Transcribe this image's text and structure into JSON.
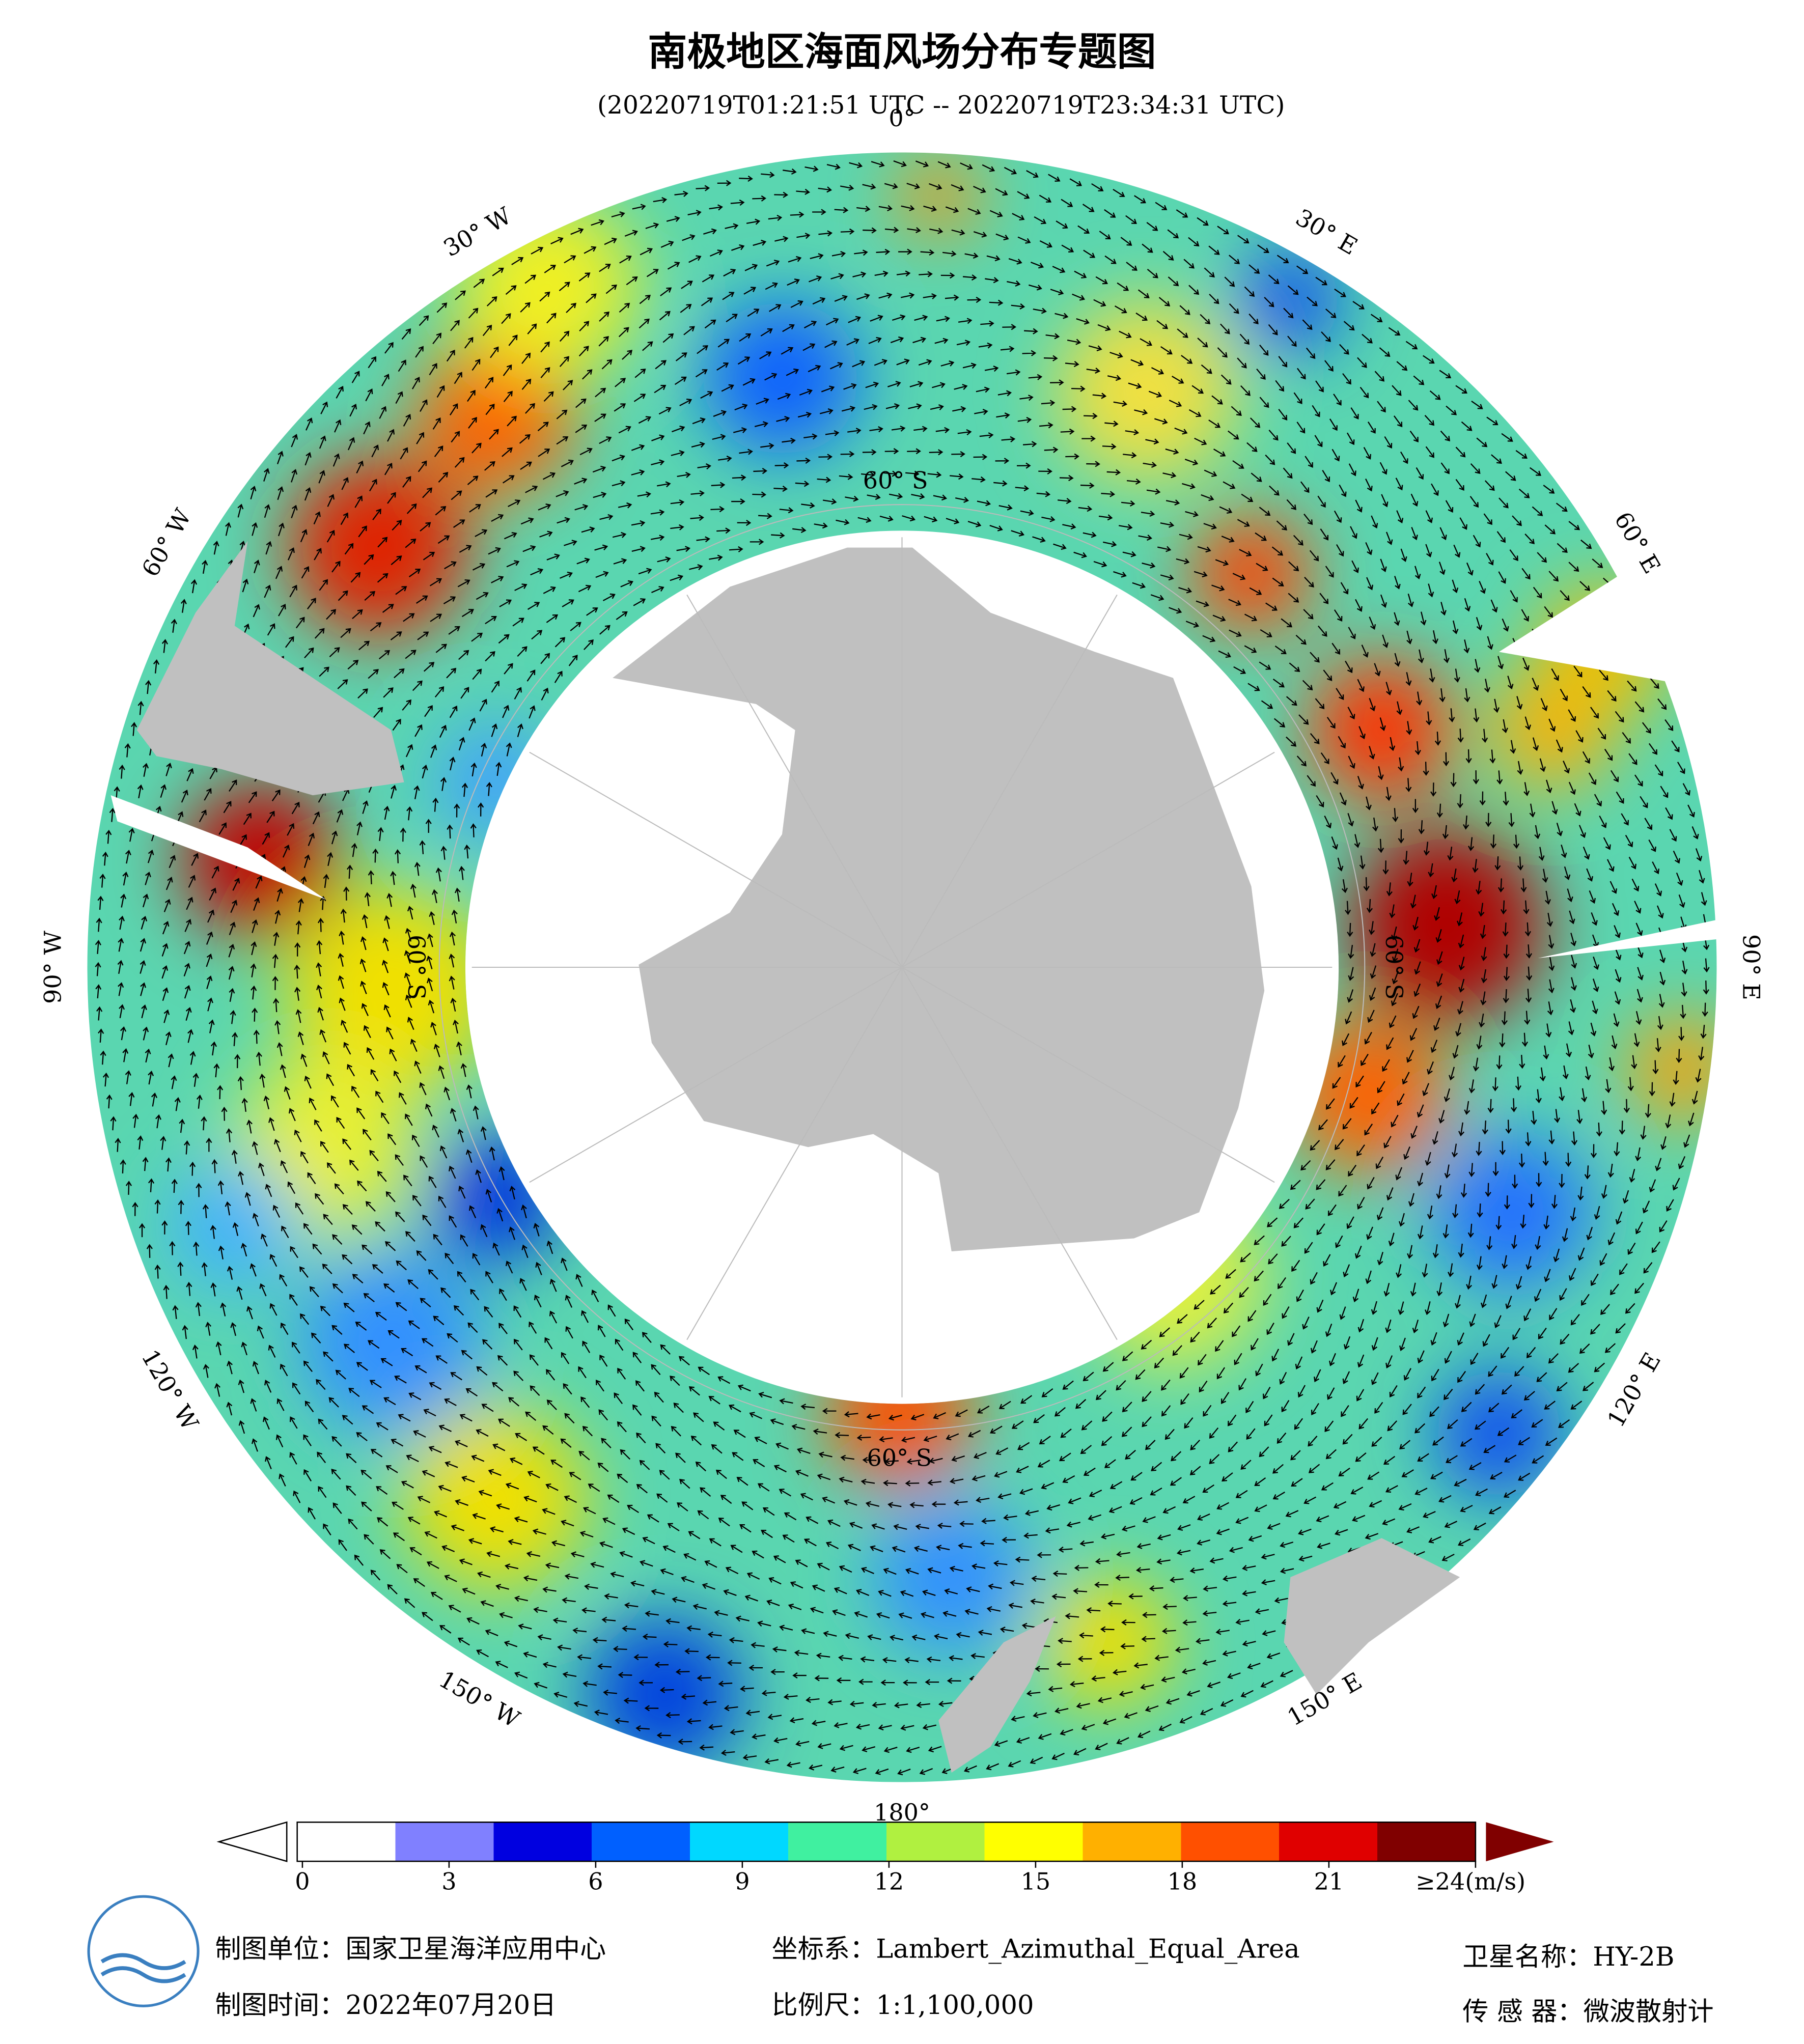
{
  "title": "南极地区海面风场分布专题图",
  "subtitle": "(20220719T01:21:51 UTC -- 20220719T23:34:31 UTC)",
  "map": {
    "graticule_labels": [
      "0°",
      "30° E",
      "60° E",
      "90° E",
      "120° E",
      "150° E",
      "180°",
      "150° W",
      "120° W",
      "90° W",
      "60° W",
      "30° W"
    ],
    "latitude_labels": [
      "60° S",
      "60° S",
      "60° S",
      "60° S"
    ]
  },
  "colorbar": {
    "range": [
      0,
      24
    ],
    "ticks": [
      0,
      3,
      6,
      9,
      12,
      15,
      18,
      21,
      {
        "value": 24,
        "label": "≥24(m/s)"
      }
    ],
    "colors": [
      "#ffffff",
      "#8080ff",
      "#0000e0",
      "#0060ff",
      "#00d8ff",
      "#40f0a0",
      "#b0f040",
      "#ffff00",
      "#ffb000",
      "#ff5000",
      "#e00000",
      "#800000"
    ]
  },
  "footer": {
    "unit": "制图单位：国家卫星海洋应用中心",
    "date": "制图时间：2022年07月20日",
    "crs": "坐标系：Lambert_Azimuthal_Equal_Area",
    "scale": "比例尺：1:1,100,000",
    "satellite": "卫星名称：HY-2B",
    "sensor": "传 感 器：微波散射计"
  }
}
